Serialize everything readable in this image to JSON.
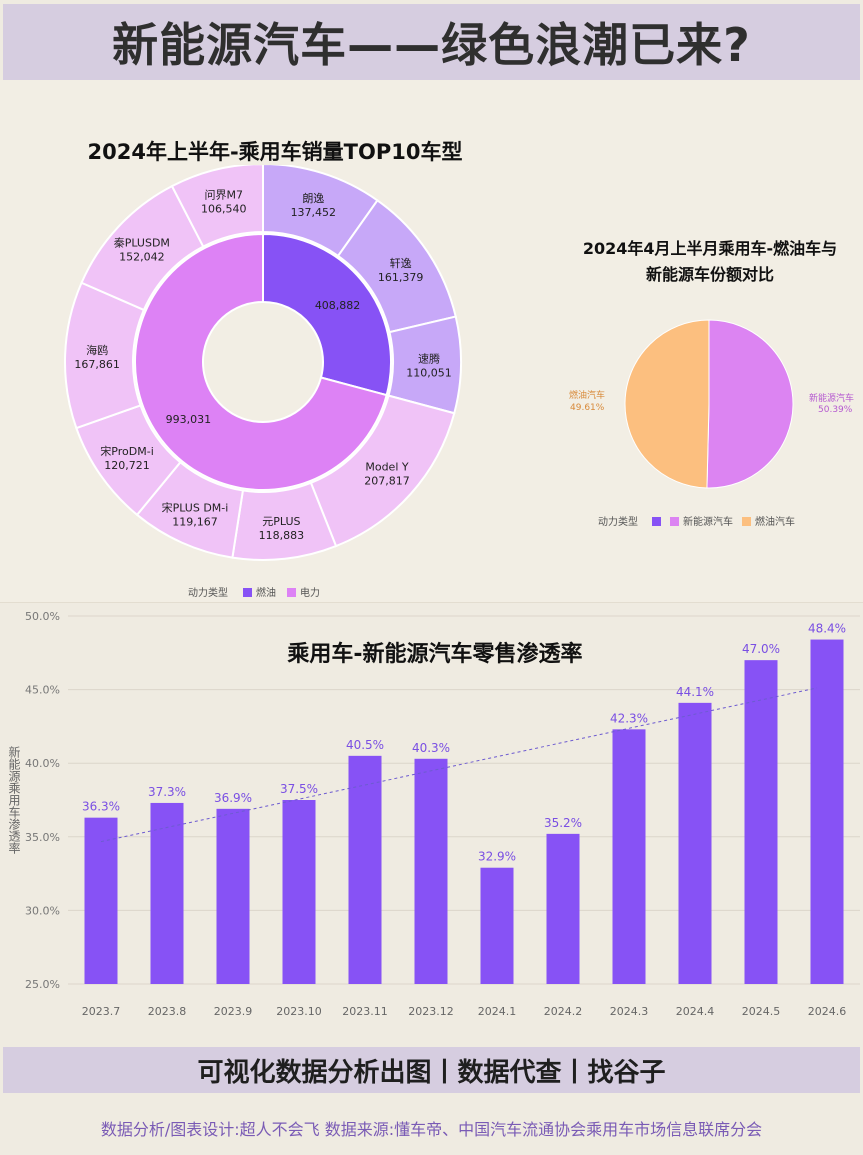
{
  "header": {
    "title": "新能源汽车——绿色浪潮已来?"
  },
  "colors": {
    "fuel": "#8752f5",
    "electric": "#dd82f5",
    "fuel_light": "#c7a8f8",
    "electric_light": "#f0c3f7",
    "pie_new": "#dc84f2",
    "pie_fuel": "#fcbf7f",
    "bar": "#8752f5",
    "bar_label": "#7a4fe3",
    "banner": "#d6cde0"
  },
  "chart_data": [
    {
      "type": "pie",
      "variant": "sunburst",
      "title": "2024年上半年-乘用车销量TOP10车型",
      "inner": [
        {
          "name": "燃油",
          "value": 408882,
          "label": "408,882"
        },
        {
          "name": "电力",
          "value": 993031,
          "label": "993,031"
        }
      ],
      "outer": [
        {
          "name": "朗逸",
          "value": 137452,
          "label": "137,452",
          "group": "燃油"
        },
        {
          "name": "轩逸",
          "value": 161379,
          "label": "161,379",
          "group": "燃油"
        },
        {
          "name": "速腾",
          "value": 110051,
          "label": "110,051",
          "group": "燃油"
        },
        {
          "name": "Model Y",
          "value": 207817,
          "label": "207,817",
          "group": "电力"
        },
        {
          "name": "元PLUS",
          "value": 118883,
          "label": "118,883",
          "group": "电力"
        },
        {
          "name": "宋PLUS DM-i",
          "value": 119167,
          "label": "119,167",
          "group": "电力"
        },
        {
          "name": "宋ProDM-i",
          "value": 120721,
          "label": "120,721",
          "group": "电力"
        },
        {
          "name": "海鸥",
          "value": 167861,
          "label": "167,861",
          "group": "电力"
        },
        {
          "name": "秦PLUSDM",
          "value": 152042,
          "label": "152,042",
          "group": "电力"
        },
        {
          "name": "问界M7",
          "value": 106540,
          "label": "106,540",
          "group": "电力"
        }
      ],
      "legend": {
        "title": "动力类型",
        "items": [
          "燃油",
          "电力"
        ],
        "position": "bottom"
      }
    },
    {
      "type": "pie",
      "title": "2024年4月上半月乘用车-燃油车与新能源车份额对比",
      "slices": [
        {
          "name": "新能源汽车",
          "value": 50.39,
          "label": "50.39%"
        },
        {
          "name": "燃油汽车",
          "value": 49.61,
          "label": "49.61%"
        }
      ],
      "legend": {
        "title": "动力类型",
        "items": [
          "新能源汽车",
          "燃油汽车"
        ],
        "position": "bottom"
      }
    },
    {
      "type": "bar",
      "title": "乘用车-新能源汽车零售渗透率",
      "ylabel": "新能源乘用车渗透率",
      "categories": [
        "2023.7",
        "2023.8",
        "2023.9",
        "2023.10",
        "2023.11",
        "2023.12",
        "2024.1",
        "2024.2",
        "2024.3",
        "2024.4",
        "2024.5",
        "2024.6"
      ],
      "values": [
        36.3,
        37.3,
        36.9,
        37.5,
        40.5,
        40.3,
        32.9,
        35.2,
        42.3,
        44.1,
        47.0,
        48.4
      ],
      "value_labels": [
        "36.3%",
        "37.3%",
        "36.9%",
        "37.5%",
        "40.5%",
        "40.3%",
        "32.9%",
        "35.2%",
        "42.3%",
        "44.1%",
        "47.0%",
        "48.4%"
      ],
      "ylim": [
        25,
        50
      ],
      "yticks": [
        "25.0%",
        "30.0%",
        "35.0%",
        "40.0%",
        "45.0%",
        "50.0%"
      ],
      "trendline": true
    }
  ],
  "footer": {
    "slogan": "可视化数据分析出图丨数据代查丨找谷子",
    "credit": "数据分析/图表设计:超人不会飞  数据来源:懂车帝、中国汽车流通协会乘用车市场信息联席分会"
  }
}
